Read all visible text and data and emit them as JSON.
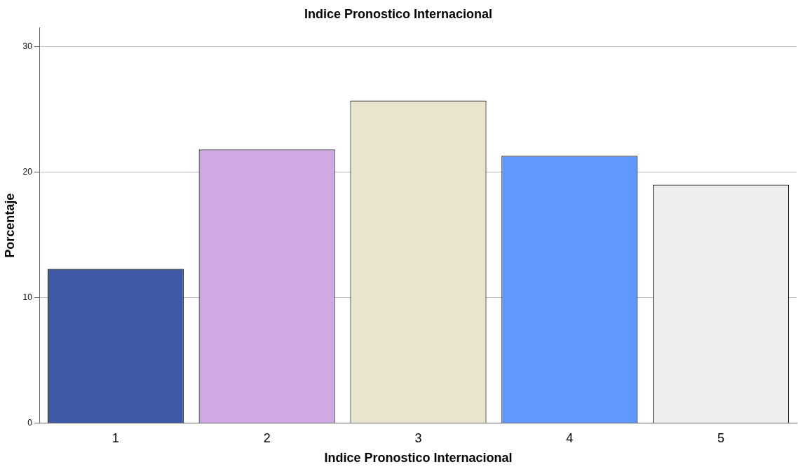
{
  "chart_data": {
    "type": "bar",
    "title": "Indice Pronostico Internacional",
    "xlabel": "Indice Pronostico Internacional",
    "ylabel": "Porcentaje",
    "categories": [
      "1",
      "2",
      "3",
      "4",
      "5"
    ],
    "values": [
      12.3,
      21.8,
      25.7,
      21.3,
      19.0
    ],
    "colors": [
      "#3e59a6",
      "#d0a9e4",
      "#ebe4cf",
      "#6198fd",
      "#ededed"
    ],
    "ylim": [
      0,
      31.5
    ],
    "yticks": [
      0,
      10,
      20,
      30
    ],
    "grid": "y"
  }
}
